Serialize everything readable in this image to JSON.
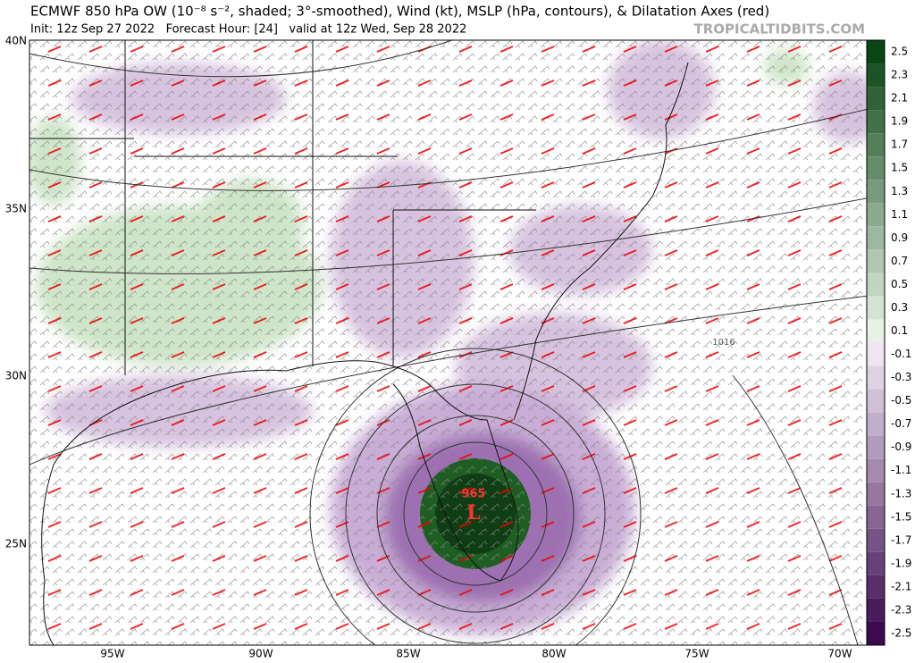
{
  "header": {
    "title": "ECMWF 850 hPa OW (10⁻⁸ s⁻², shaded; 3°-smoothed), Wind (kt), MSLP (hPa, contours), & Dilatation Axes (red)",
    "subtitle": "Init: 12z Sep 27 2022   Forecast Hour: [24]   valid at 12z Wed, Sep 28 2022",
    "watermark": "TROPICALTIDBITS.COM"
  },
  "map": {
    "lat_labels": [
      "40N",
      "35N",
      "30N",
      "25N"
    ],
    "lon_labels": [
      "95W",
      "90W",
      "85W",
      "80W",
      "75W",
      "70W"
    ],
    "low": {
      "pressure": 965,
      "label": "L"
    },
    "contour_label": 1016
  },
  "colorbar": {
    "labels": [
      2.5,
      2.3,
      2.1,
      1.9,
      1.7,
      1.5,
      1.3,
      1.1,
      0.9,
      0.7,
      0.5,
      0.3,
      0.1,
      -0.1,
      -0.3,
      -0.5,
      -0.7,
      -0.9,
      -1.1,
      -1.3,
      -1.5,
      -1.7,
      -1.9,
      -2.1,
      -2.3,
      -2.5
    ]
  }
}
